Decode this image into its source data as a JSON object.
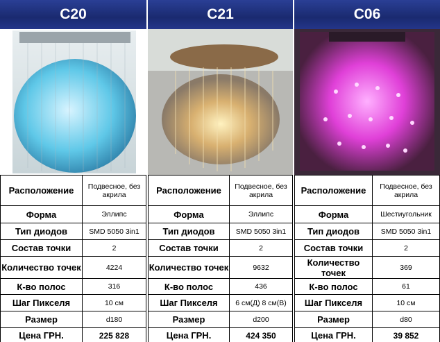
{
  "row_labels": [
    "Расположение",
    "Форма",
    "Тип диодов",
    "Состав точки",
    "Количество точек",
    "К-во полос",
    "Шаг Пикселя",
    "Размер",
    "Цена ГРН."
  ],
  "products": [
    {
      "name": "C20",
      "values": [
        "Подвесное, без акрила",
        "Эллипс",
        "SMD 5050 3in1",
        "2",
        "4224",
        "316",
        "10 см",
        "d180",
        "225 828"
      ]
    },
    {
      "name": "C21",
      "values": [
        "Подвесное, без акрила",
        "Эллипс",
        "SMD 5050 3in1",
        "2",
        "9632",
        "436",
        "6 см(Д) 8 см(В)",
        "d200",
        "424 350"
      ]
    },
    {
      "name": "C06",
      "values": [
        "Подвесное, без акрила",
        "Шестиугольник",
        "SMD 5050 3in1",
        "2",
        "369",
        "61",
        "10 см",
        "d80",
        "39 852"
      ]
    }
  ]
}
